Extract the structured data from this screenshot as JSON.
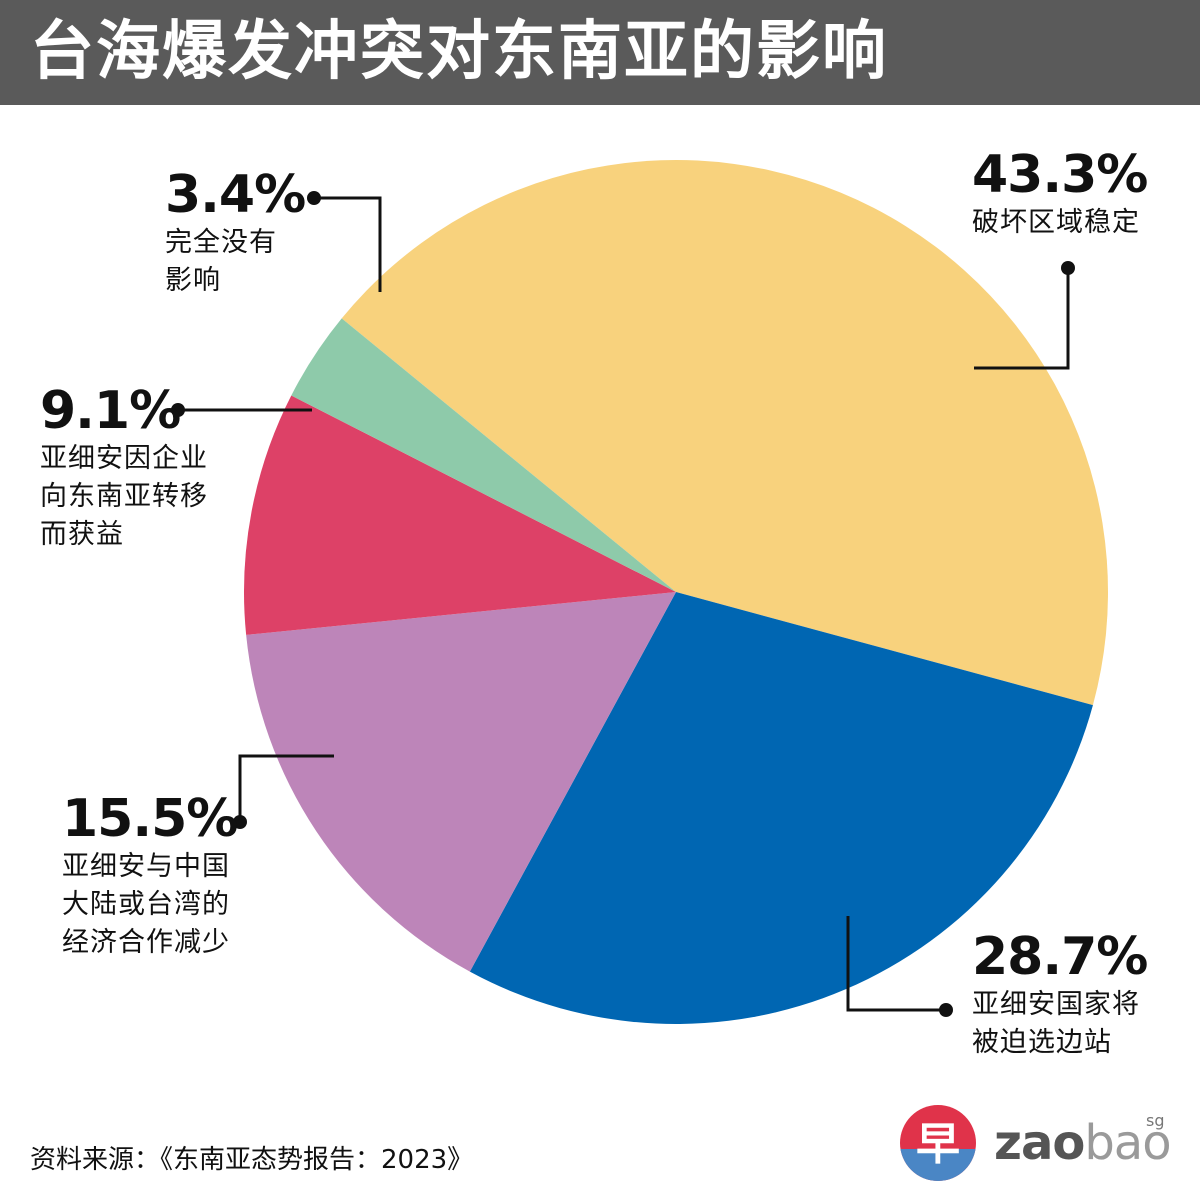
{
  "title": "台海爆发冲突对东南亚的影响",
  "chart_data": {
    "type": "pie",
    "title": "台海爆发冲突对东南亚的影响",
    "slices": [
      {
        "value": 43.3,
        "label": "43.3%",
        "desc": [
          "破坏区域稳定"
        ],
        "color": "#f8d27d"
      },
      {
        "value": 28.7,
        "label": "28.7%",
        "desc": [
          "亚细安国家将",
          "被迫选边站"
        ],
        "color": "#0066b2"
      },
      {
        "value": 15.5,
        "label": "15.5%",
        "desc": [
          "亚细安与中国",
          "大陆或台湾的",
          "经济合作减少"
        ],
        "color": "#bd85b9"
      },
      {
        "value": 9.1,
        "label": "9.1%",
        "desc": [
          "亚细安因企业",
          "向东南亚转移",
          "而获益"
        ],
        "color": "#dd4167"
      },
      {
        "value": 3.4,
        "label": "3.4%",
        "desc": [
          "完全没有",
          "影响"
        ],
        "color": "#8ecaaa"
      }
    ]
  },
  "source": "资料来源：《东南亚态势报告：2023》",
  "logo": {
    "glyph": "早",
    "zao": "zao",
    "bao": "bao",
    "sg": "sg"
  },
  "colors": {
    "title_bar": "#5a5a5a",
    "logo_red": "#e0334a",
    "logo_blue": "#4a86c5"
  }
}
